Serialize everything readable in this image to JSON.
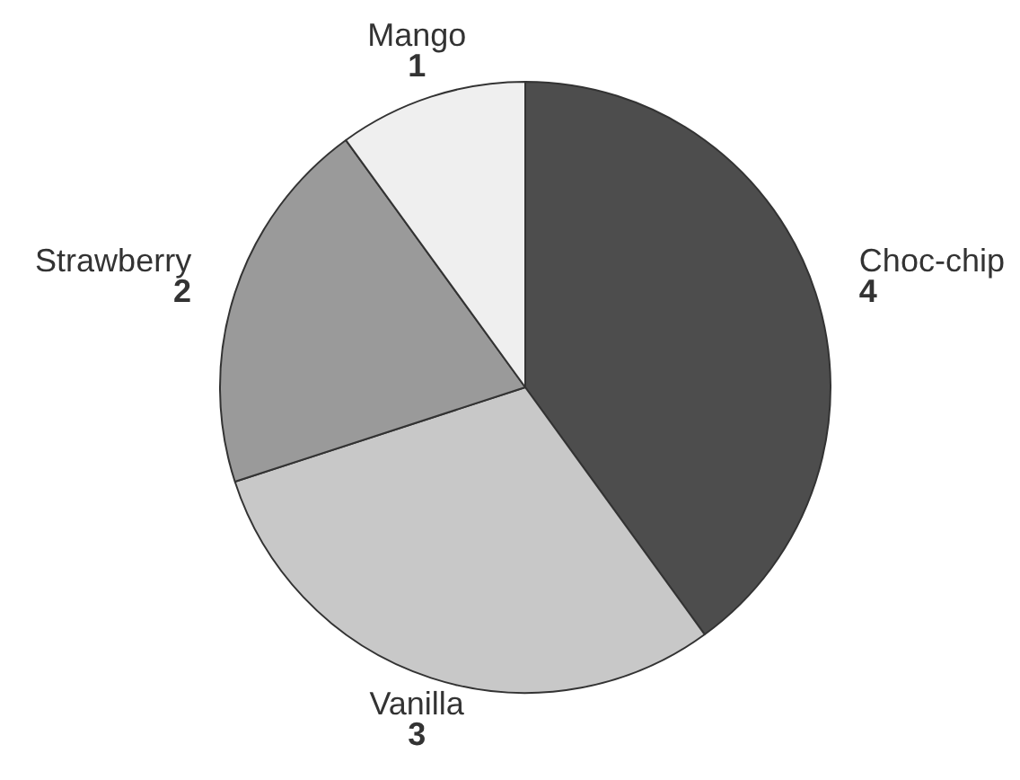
{
  "chart_data": {
    "type": "pie",
    "categories": [
      "Choc-chip",
      "Vanilla",
      "Strawberry",
      "Mango"
    ],
    "values": [
      4,
      3,
      2,
      1
    ],
    "colors": [
      "#4d4d4d",
      "#c8c8c8",
      "#9a9a9a",
      "#efefef"
    ],
    "data_labels": true
  }
}
